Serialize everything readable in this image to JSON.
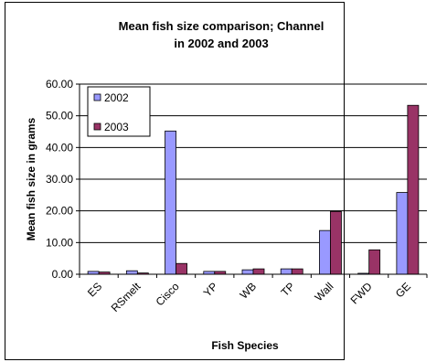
{
  "chart_data": {
    "type": "bar",
    "title_lines": [
      "Mean fish size comparison; Channel",
      "in 2002 and 2003"
    ],
    "xlabel": "Fish Species",
    "ylabel": "Mean fish size in grams",
    "categories": [
      "ES",
      "RSmelt",
      "Cisco",
      "YP",
      "WB",
      "TP",
      "Wall",
      "FWD",
      "GE"
    ],
    "ylim": [
      0,
      60
    ],
    "yticks": [
      "0.00",
      "10.00",
      "20.00",
      "30.00",
      "40.00",
      "50.00",
      "60.00"
    ],
    "grid": true,
    "legend_position": "top-left",
    "series": [
      {
        "name": "2002",
        "color": "#9999ff",
        "values": [
          0.9,
          1.1,
          45.2,
          0.9,
          1.4,
          1.7,
          13.8,
          0.3,
          25.8
        ]
      },
      {
        "name": "2003",
        "color": "#993366",
        "values": [
          0.7,
          0.4,
          3.4,
          0.9,
          1.7,
          1.7,
          19.8,
          7.7,
          53.3
        ]
      }
    ]
  }
}
